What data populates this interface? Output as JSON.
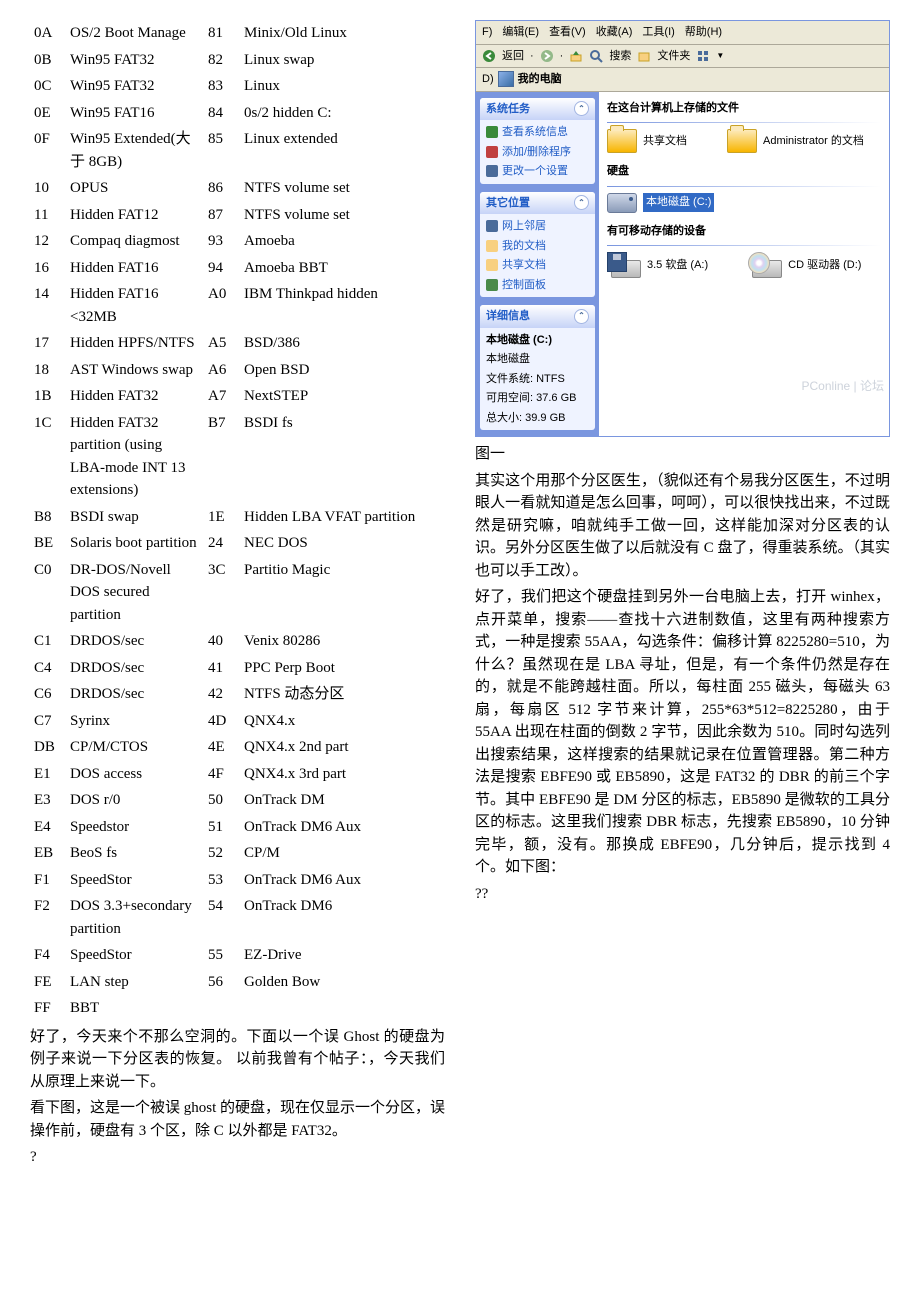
{
  "partition_types": [
    [
      "0A",
      "OS/2 Boot Manage",
      "81",
      "Minix/Old Linux"
    ],
    [
      "0B",
      "Win95 FAT32",
      "82",
      "Linux swap"
    ],
    [
      "0C",
      "Win95 FAT32",
      "83",
      "Linux"
    ],
    [
      "0E",
      "Win95 FAT16",
      "84",
      "0s/2 hidden C:"
    ],
    [
      "0F",
      "Win95 Extended(大于 8GB)",
      "85",
      "Linux extended"
    ],
    [
      "10",
      "OPUS",
      "86",
      "NTFS volume set"
    ],
    [
      "11",
      "Hidden FAT12",
      "87",
      "NTFS volume set"
    ],
    [
      "12",
      "Compaq diagmost",
      "93",
      "Amoeba"
    ],
    [
      "16",
      "Hidden FAT16",
      "94",
      "Amoeba BBT"
    ],
    [
      "14",
      "Hidden FAT16 <32MB",
      "A0",
      "IBM Thinkpad hidden"
    ],
    [
      "17",
      "Hidden HPFS/NTFS",
      "A5",
      "BSD/386"
    ],
    [
      "18",
      "AST Windows swap",
      "A6",
      "Open BSD"
    ],
    [
      "1B",
      "Hidden FAT32",
      "A7",
      "NextSTEP"
    ],
    [
      "1C",
      "Hidden FAT32 partition (using LBA-mode INT 13 extensions)",
      "B7",
      "BSDI fs"
    ],
    [
      "B8",
      "BSDI swap",
      "1E",
      "Hidden LBA VFAT partition"
    ],
    [
      "BE",
      "Solaris boot partition",
      "24",
      "NEC DOS"
    ],
    [
      "C0",
      "DR-DOS/Novell DOS secured partition",
      "3C",
      "Partitio Magic"
    ],
    [
      "C1",
      "DRDOS/sec",
      "40",
      "Venix 80286"
    ],
    [
      "C4",
      "DRDOS/sec",
      "41",
      "PPC Perp Boot"
    ],
    [
      "C6",
      "DRDOS/sec",
      "42",
      "NTFS 动态分区"
    ],
    [
      "C7",
      "Syrinx",
      "4D",
      "QNX4.x"
    ],
    [
      "DB",
      "CP/M/CTOS",
      "4E",
      "QNX4.x 2nd part"
    ],
    [
      "E1",
      "DOS access",
      "4F",
      "QNX4.x 3rd part"
    ],
    [
      "E3",
      "DOS r/0",
      "50",
      "OnTrack DM"
    ],
    [
      "E4",
      "Speedstor",
      "51",
      "OnTrack DM6 Aux"
    ],
    [
      "EB",
      "BeoS fs",
      "52",
      "CP/M"
    ],
    [
      "F1",
      "SpeedStor",
      "53",
      "OnTrack DM6 Aux"
    ],
    [
      "F2",
      "DOS 3.3+secondary partition",
      "54",
      "OnTrack DM6"
    ],
    [
      "F4",
      "SpeedStor",
      "55",
      "EZ-Drive"
    ],
    [
      "FE",
      "LAN step",
      "56",
      "Golden Bow"
    ],
    [
      "FF",
      "BBT",
      "",
      ""
    ]
  ],
  "para1": "好了，今天来个不那么空洞的。下面以一个误 Ghost 的硬盘为例子来说一下分区表的恢复。 以前我曾有个帖子：，今天我们从原理上来说一下。",
  "para2_a": "看下图，这是一个被误 ghost 的硬盘，现在仅显示一个分区，误操作前，硬盘有 3 个区，除 C 以外都是 FAT32。",
  "para2_b": "?",
  "windows": {
    "menubar": [
      "F)",
      "编辑(E)",
      "查看(V)",
      "收藏(A)",
      "工具(I)",
      "帮助(H)"
    ],
    "toolbar": {
      "back": "返回",
      "search": "搜索",
      "folders": "文件夹"
    },
    "address_label": "D)",
    "address": "我的电脑",
    "sidebar": {
      "tasks_title": "系统任务",
      "tasks": [
        "查看系统信息",
        "添加/删除程序",
        "更改一个设置"
      ],
      "other_title": "其它位置",
      "other": [
        "网上邻居",
        "我的文档",
        "共享文档",
        "控制面板"
      ],
      "details_title": "详细信息",
      "details": {
        "name": "本地磁盘 (C:)",
        "type": "本地磁盘",
        "fs": "文件系统: NTFS",
        "free": "可用空间: 37.6 GB",
        "total": "总大小: 39.9 GB"
      }
    },
    "content": {
      "sec1": "在这台计算机上存储的文件",
      "shared": "共享文档",
      "admin": "Administrator 的文档",
      "sec2": "硬盘",
      "localdisk": "本地磁盘 (C:)",
      "sec3": "有可移动存储的设备",
      "floppy": "3.5 软盘 (A:)",
      "cd": "CD 驱动器 (D:)"
    },
    "watermark": "PConline | 论坛"
  },
  "fig1": "图一",
  "para3": "其实这个用那个分区医生，（貌似还有个易我分区医生，不过明眼人一看就知道是怎么回事，呵呵），可以很快找出来，不过既然是研究嘛，咱就纯手工做一回，这样能加深对分区表的认识。另外分区医生做了以后就没有 C 盘了，得重装系统。（其实也可以手工改）。",
  "para4": "好了，我们把这个硬盘挂到另外一台电脑上去，打开 winhex，点开菜单，搜索——查找十六进制数值，这里有两种搜索方式，一种是搜索 55AA，勾选条件：偏移计算 8225280=510，为什么？虽然现在是 LBA 寻址，但是，有一个条件仍然是存在的，就是不能跨越柱面。所以，每柱面 255 磁头，每磁头 63 扇，每扇区 512 字节来计算，255*63*512=8225280，由于 55AA 出现在柱面的倒数 2 字节，因此余数为 510。同时勾选列出搜索结果，这样搜索的结果就记录在位置管理器。第二种方法是搜索 EBFE90 或 EB5890，这是 FAT32 的 DBR 的前三个字节。其中 EBFE90 是 DM 分区的标志，EB5890 是微软的工具分区的标志。这里我们搜索 DBR 标志，先搜索 EB5890，10 分钟完毕，额，没有。那换成 EBFE90，几分钟后，提示找到 4 个。如下图：",
  "para5": "??"
}
